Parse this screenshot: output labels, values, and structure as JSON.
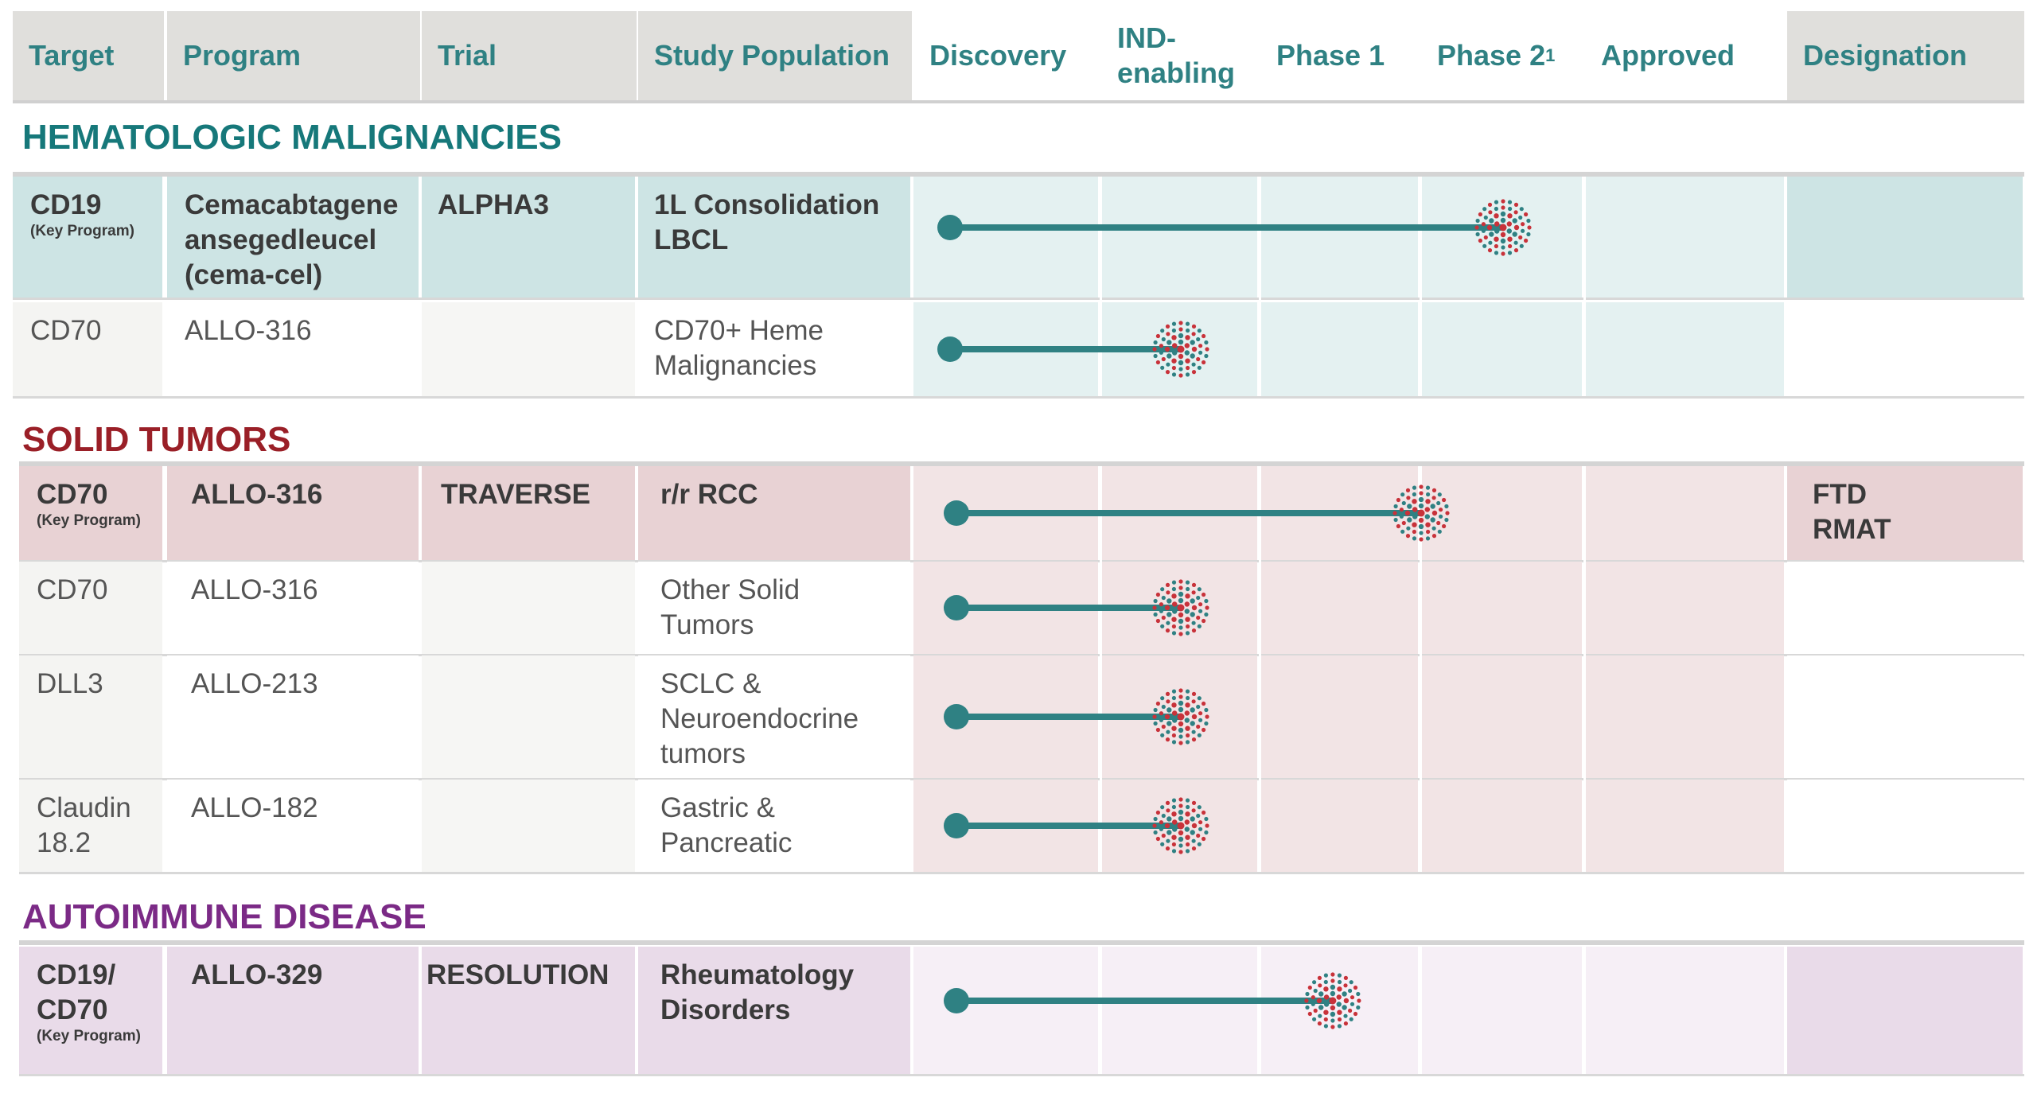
{
  "header": {
    "columns": [
      {
        "key": "target",
        "label": "Target"
      },
      {
        "key": "program",
        "label": "Program"
      },
      {
        "key": "trial",
        "label": "Trial"
      },
      {
        "key": "population",
        "label": "Study Population"
      },
      {
        "key": "discovery",
        "label": "Discovery"
      },
      {
        "key": "ind",
        "label": "IND-\nenabling"
      },
      {
        "key": "phase1",
        "label": "Phase 1"
      },
      {
        "key": "phase2",
        "label": "Phase 2",
        "sup": "1"
      },
      {
        "key": "approved",
        "label": "Approved"
      },
      {
        "key": "designation",
        "label": "Designation"
      }
    ]
  },
  "stages": [
    "Discovery",
    "IND-enabling",
    "Phase 1",
    "Phase 2",
    "Approved"
  ],
  "sections": [
    {
      "title": "HEMATOLOGIC MALIGNANCIES",
      "color": "#16787a",
      "rows": [
        {
          "target": "CD19",
          "target_note": "(Key Program)",
          "program": "Cemacabtagene\nansegedleucel\n(cema-cel)",
          "trial": "ALPHA3",
          "population": "1L Consolidation\nLBCL",
          "designation": "",
          "key": true,
          "stage_reached": "Phase 2",
          "stage_progress": 3.5
        },
        {
          "target": "CD70",
          "target_note": "",
          "program": "ALLO-316",
          "trial": "",
          "population": "CD70+ Heme\nMalignancies",
          "designation": "",
          "key": false,
          "stage_reached": "IND-enabling",
          "stage_progress": 1.5
        }
      ]
    },
    {
      "title": "SOLID TUMORS",
      "color": "#9a1f27",
      "rows": [
        {
          "target": "CD70",
          "target_note": "(Key Program)",
          "program": "ALLO-316",
          "trial": "TRAVERSE",
          "population": "r/r RCC",
          "designation": "FTD\nRMAT",
          "key": true,
          "stage_reached": "Phase 1",
          "stage_progress": 3.0
        },
        {
          "target": "CD70",
          "target_note": "",
          "program": "ALLO-316",
          "trial": "",
          "population": "Other Solid\nTumors",
          "designation": "",
          "key": false,
          "stage_reached": "IND-enabling",
          "stage_progress": 1.5
        },
        {
          "target": "DLL3",
          "target_note": "",
          "program": "ALLO-213",
          "trial": "",
          "population": "SCLC &\nNeuroendocrine\ntumors",
          "designation": "",
          "key": false,
          "stage_reached": "IND-enabling",
          "stage_progress": 1.5
        },
        {
          "target": "Claudin\n18.2",
          "target_note": "",
          "program": "ALLO-182",
          "trial": "",
          "population": "Gastric &\nPancreatic",
          "designation": "",
          "key": false,
          "stage_reached": "IND-enabling",
          "stage_progress": 1.5
        }
      ]
    },
    {
      "title": "AUTOIMMUNE DISEASE",
      "color": "#7b2a86",
      "rows": [
        {
          "target": "CD19/\nCD70",
          "target_note": "(Key Program)",
          "program": "ALLO-329",
          "trial": "RESOLUTION",
          "population": "Rheumatology\nDisorders",
          "designation": "",
          "key": true,
          "stage_reached": "Phase 1",
          "stage_progress": 2.45
        }
      ]
    }
  ],
  "colors": {
    "header_text": "#2f8183",
    "bar": "#2f8183",
    "marker_red": "#c8323a",
    "marker_teal": "#2f8183"
  }
}
